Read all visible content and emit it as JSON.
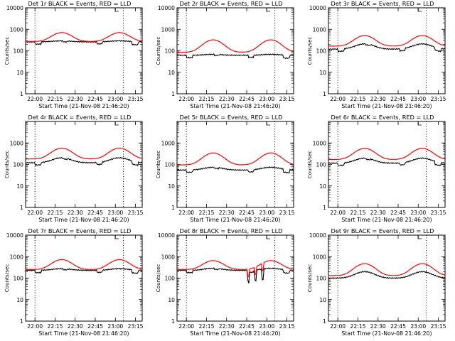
{
  "figure": {
    "xlabel": "Start Time (21-Nov-08 21:46:20)",
    "ylabel": "Counts/sec",
    "x_ticks": [
      "22:00",
      "22:15",
      "22:30",
      "22:45",
      "23:00",
      "23:15"
    ],
    "y_ticks": [
      "1",
      "10",
      "100",
      "1000",
      "10000"
    ],
    "colors": {
      "events": "#000000",
      "lld": "#ff0000",
      "axes": "#000000"
    }
  },
  "chart_data": [
    {
      "type": "line",
      "title": "Det 1r BLACK = Events, RED = LLD",
      "profile": "dip",
      "ev_base": 260,
      "ev_amp": 0.12,
      "lld_base": 270,
      "lld_amp": 1.6,
      "y_ticks_show": [
        0,
        1,
        2,
        3,
        4
      ]
    },
    {
      "type": "line",
      "title": "Det 2r BLACK = Events, RED = LLD",
      "profile": "dip",
      "ev_base": 62,
      "ev_amp": 0.1,
      "lld_base": 85,
      "lld_amp": 2.8,
      "y_ticks_show": [
        0,
        1,
        2,
        3,
        4
      ]
    },
    {
      "type": "line",
      "title": "Det 3r BLACK = Events, RED = LLD",
      "profile": "dip",
      "ev_base": 120,
      "ev_amp": 0.75,
      "lld_base": 165,
      "lld_amp": 2.1,
      "y_ticks_show": [
        0,
        1,
        2,
        3,
        4
      ]
    },
    {
      "type": "line",
      "title": "Det 4r BLACK = Events, RED = LLD",
      "profile": "dip",
      "ev_base": 120,
      "ev_amp": 0.7,
      "lld_base": 180,
      "lld_amp": 2.2,
      "y_ticks_show": [
        0,
        1,
        2,
        3
      ]
    },
    {
      "type": "line",
      "title": "Det 5r BLACK = Events, RED = LLD",
      "profile": "dip",
      "ev_base": 55,
      "ev_amp": 0.35,
      "lld_base": 95,
      "lld_amp": 2.6,
      "y_ticks_show": [
        0,
        1,
        2,
        3
      ]
    },
    {
      "type": "line",
      "title": "Det 6r BLACK = Events, RED = LLD",
      "profile": "dip",
      "ev_base": 115,
      "ev_amp": 0.7,
      "lld_base": 170,
      "lld_amp": 2.3,
      "y_ticks_show": [
        0,
        1,
        2,
        3
      ]
    },
    {
      "type": "line",
      "title": "Det 7r BLACK = Events, RED = LLD",
      "profile": "dip",
      "ev_base": 230,
      "ev_amp": 0.2,
      "lld_base": 250,
      "lld_amp": 1.9,
      "y_ticks_show": [
        0,
        1,
        2,
        3,
        4
      ]
    },
    {
      "type": "line",
      "title": "Det 8r BLACK = Events, RED = LLD",
      "profile": "spiky",
      "ev_base": 230,
      "ev_amp": 0.25,
      "lld_base": 250,
      "lld_amp": 1.6,
      "y_ticks_show": [
        0,
        1,
        2,
        3,
        4
      ]
    },
    {
      "type": "line",
      "title": "Det 9r BLACK = Events, RED = LLD",
      "profile": "smooth",
      "ev_base": 100,
      "ev_amp": 1.0,
      "lld_base": 130,
      "lld_amp": 2.6,
      "y_ticks_show": [
        0,
        1,
        2,
        3,
        4
      ]
    }
  ]
}
